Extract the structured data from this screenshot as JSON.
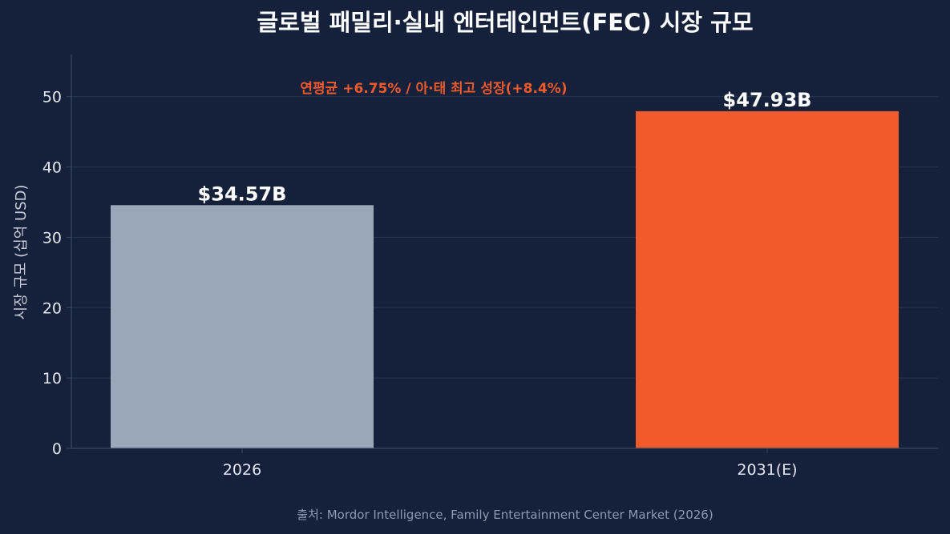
{
  "chart_data": {
    "type": "bar",
    "title": "글로벌 패밀리·실내 엔터테인먼트(FEC) 시장 규모",
    "ylabel": "시장 규모 (십억 USD)",
    "xlabel": "",
    "categories": [
      "2026",
      "2031(E)"
    ],
    "values": [
      34.57,
      47.93
    ],
    "data_labels": [
      "$34.57B",
      "$47.93B"
    ],
    "bar_colors": [
      "#9aa7b8",
      "#f15a2b"
    ],
    "ylim": [
      0,
      56
    ],
    "yticks": [
      0,
      10,
      20,
      30,
      40,
      50
    ],
    "grid": true,
    "annotation": "연평균 +6.75% / 아·태 최고 성장(+8.4%)",
    "annotation_color": "#f15a2b",
    "source": "출처: Mordor Intelligence, Family Entertainment Center Market (2026)"
  }
}
